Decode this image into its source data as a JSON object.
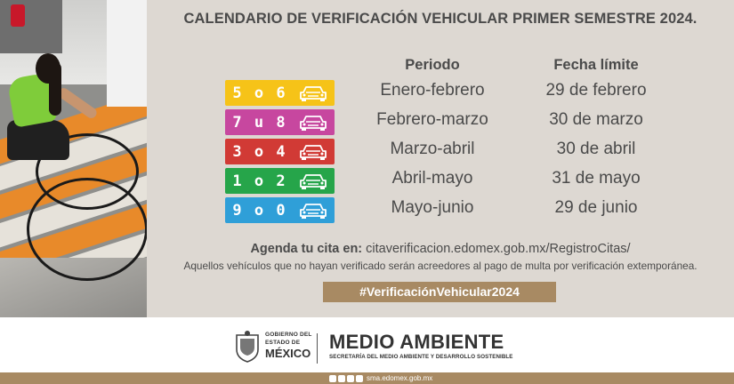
{
  "title": "CALENDARIO DE VERIFICACIÓN VEHICULAR PRIMER SEMESTRE 2024.",
  "columns": {
    "periodo": "Periodo",
    "fecha": "Fecha límite"
  },
  "rows": [
    {
      "digits": "5 o 6",
      "color": "#f6c318",
      "periodo": "Enero-febrero",
      "fecha": "29 de febrero",
      "icon": "car-icon"
    },
    {
      "digits": "7 u 8",
      "color": "#c7479f",
      "periodo": "Febrero-marzo",
      "fecha": "30 de marzo",
      "icon": "car-icon"
    },
    {
      "digits": "3 o 4",
      "color": "#d13a35",
      "periodo": "Marzo-abril",
      "fecha": "30 de abril",
      "icon": "car-icon"
    },
    {
      "digits": "1 o 2",
      "color": "#26a54a",
      "periodo": "Abril-mayo",
      "fecha": "31 de mayo",
      "icon": "car-icon"
    },
    {
      "digits": "9 o 0",
      "color": "#2f9fd8",
      "periodo": "Mayo-junio",
      "fecha": "29 de junio",
      "icon": "car-icon"
    }
  ],
  "agenda": {
    "label": "Agenda tu cita en:",
    "url": "citaverificacion.edomex.gob.mx/RegistroCitas/"
  },
  "notice": "Aquellos vehículos que no hayan verificado serán acreedores al pago de multa por verificación extemporánea.",
  "hashtag": "#VerificaciónVehicular2024",
  "footer": {
    "gov_line1": "GOBIERNO DEL",
    "gov_line2": "ESTADO DE",
    "gov_line3": "MÉXICO",
    "dept_name": "MEDIO AMBIENTE",
    "dept_sub": "SECRETARÍA DEL MEDIO AMBIENTE Y DESARROLLO SOSTENIBLE",
    "website": "sma.edomex.gob.mx",
    "social_icons": [
      "facebook-icon",
      "x-icon",
      "instagram-icon",
      "youtube-icon"
    ]
  },
  "colors": {
    "panel_bg": "#ddd8d2",
    "text": "#4a4a4a",
    "gold": "#a88a63"
  }
}
